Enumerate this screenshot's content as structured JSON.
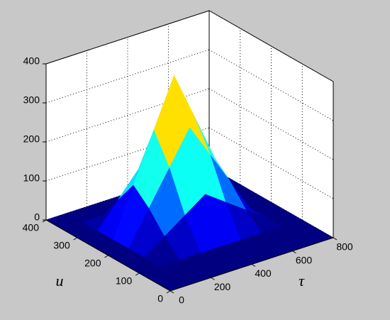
{
  "chart_data": {
    "type": "surface",
    "xlabel": "τ",
    "ylabel": "u",
    "x": [
      0,
      100,
      200,
      300,
      400,
      500,
      600,
      700,
      800
    ],
    "y": [
      0,
      50,
      100,
      150,
      200,
      250,
      300,
      350,
      400
    ],
    "z": [
      [
        0,
        0,
        0,
        0,
        0,
        0,
        0,
        0,
        0
      ],
      [
        0,
        0,
        0,
        0,
        0,
        0,
        0,
        0,
        0
      ],
      [
        0,
        0,
        0,
        0,
        0,
        0,
        0,
        0,
        0
      ],
      [
        0,
        0,
        37,
        74,
        111,
        74,
        37,
        0,
        0
      ],
      [
        0,
        0,
        86,
        173,
        259,
        173,
        86,
        0,
        0
      ],
      [
        0,
        0,
        123,
        247,
        370,
        247,
        123,
        0,
        0
      ],
      [
        0,
        0,
        62,
        123,
        185,
        123,
        62,
        0,
        0
      ],
      [
        0,
        0,
        0,
        0,
        0,
        0,
        0,
        0,
        0
      ],
      [
        0,
        0,
        0,
        0,
        0,
        0,
        0,
        0,
        0
      ]
    ],
    "xlim": [
      0,
      800
    ],
    "ylim": [
      0,
      400
    ],
    "zlim": [
      0,
      400
    ],
    "xticks": [
      0,
      200,
      400,
      600,
      800
    ],
    "yticks": [
      0,
      100,
      200,
      300,
      400
    ],
    "zticks": [
      0,
      100,
      200,
      300,
      400
    ],
    "grid": true,
    "colormap": "jet"
  }
}
